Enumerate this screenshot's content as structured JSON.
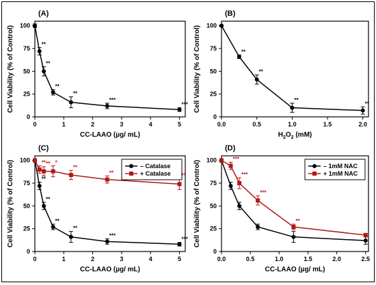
{
  "chart_data": [
    {
      "type": "line",
      "panel": "(A)",
      "title": "",
      "xlabel": "CC-LAAO (µg/ mL)",
      "ylabel": "Cell Viability (% of Control)",
      "xlim": [
        0,
        5.2
      ],
      "ylim": [
        0,
        105
      ],
      "xticks": [
        0,
        1,
        2,
        3,
        4,
        5
      ],
      "yticks": [
        0,
        25,
        50,
        75,
        100
      ],
      "xticklabels": [
        "0",
        "1",
        "2",
        "3",
        "4",
        "5"
      ],
      "yticklabels": [
        "0",
        "25",
        "50",
        "75",
        "100"
      ],
      "grid": false,
      "legend": null,
      "series": [
        {
          "name": "",
          "color": "#000000",
          "marker": "circle",
          "x": [
            0,
            0.16,
            0.31,
            0.63,
            1.25,
            2.5,
            5.0
          ],
          "y": [
            100,
            72,
            50,
            27,
            16,
            12,
            8
          ],
          "err": [
            2,
            4,
            5,
            3,
            6,
            3,
            2
          ],
          "sig": [
            "",
            "**",
            "**",
            "**",
            "**",
            "***",
            "***"
          ]
        }
      ]
    },
    {
      "type": "line",
      "panel": "(B)",
      "title": "",
      "xlabel": "H2O2 (mM)",
      "xlabel_main": "H",
      "xlabel_sub": "2",
      "xlabel_mid": "O",
      "xlabel_sub2": "2",
      "xlabel_tail": " (mM)",
      "ylabel": "Cell Viability (% of Control)",
      "xlim": [
        0,
        2.08
      ],
      "ylim": [
        0,
        105
      ],
      "xticks": [
        0,
        0.5,
        1.0,
        1.5,
        2.0
      ],
      "yticks": [
        0,
        25,
        50,
        75,
        100
      ],
      "xticklabels": [
        "0.0",
        "0.5",
        "1.0",
        "1.5",
        "2.0"
      ],
      "yticklabels": [
        "0",
        "25",
        "50",
        "75",
        "100"
      ],
      "grid": false,
      "legend": null,
      "series": [
        {
          "name": "",
          "color": "#000000",
          "marker": "circle",
          "x": [
            0,
            0.25,
            0.5,
            1.0,
            2.0
          ],
          "y": [
            100,
            66,
            41,
            10,
            7
          ],
          "err": [
            1,
            2,
            5,
            5,
            4
          ],
          "sig": [
            "",
            "**",
            "**",
            "**",
            "**"
          ]
        }
      ]
    },
    {
      "type": "line",
      "panel": "(C)",
      "title": "",
      "xlabel": "CC-LAAO (µg/ mL)",
      "ylabel": "Cell Viability (% of Control)",
      "xlim": [
        0,
        5.2
      ],
      "ylim": [
        0,
        105
      ],
      "xticks": [
        0,
        1,
        2,
        3,
        4,
        5
      ],
      "yticks": [
        0,
        25,
        50,
        75,
        100
      ],
      "xticklabels": [
        "0",
        "1",
        "2",
        "3",
        "4",
        "5"
      ],
      "yticklabels": [
        "0",
        "25",
        "50",
        "75",
        "100"
      ],
      "grid": false,
      "legend": "top-right",
      "series": [
        {
          "name": "– Catalase",
          "color": "#000000",
          "marker": "circle",
          "x": [
            0,
            0.16,
            0.31,
            0.63,
            1.25,
            2.5,
            5.0
          ],
          "y": [
            100,
            72,
            50,
            27,
            16,
            11,
            8
          ],
          "err": [
            2,
            4,
            4,
            3,
            6,
            3,
            2
          ],
          "sig": [
            "",
            "**",
            "**",
            "**",
            "**",
            "***",
            "***"
          ]
        },
        {
          "name": "+ Catalase",
          "color": "#b01818",
          "marker": "square",
          "x": [
            0,
            0.16,
            0.31,
            0.63,
            1.25,
            2.5,
            5.0
          ],
          "y": [
            100,
            90,
            88,
            88,
            84,
            79,
            74
          ],
          "err": [
            2,
            4,
            5,
            6,
            5,
            4,
            6
          ],
          "sig": [
            "",
            "**",
            "**",
            "*",
            "**",
            "**",
            "**"
          ]
        }
      ]
    },
    {
      "type": "line",
      "panel": "(D)",
      "title": "",
      "xlabel": "CC-LAAO (µg/ mL)",
      "ylabel": "Cell Viability (% of Control)",
      "xlim": [
        0,
        2.55
      ],
      "ylim": [
        0,
        105
      ],
      "xticks": [
        0,
        0.5,
        1.0,
        1.5,
        2.0,
        2.5
      ],
      "yticks": [
        0,
        25,
        50,
        75,
        100
      ],
      "xticklabels": [
        "0.0",
        "0.5",
        "1.0",
        "1.5",
        "2.0",
        "2.5"
      ],
      "yticklabels": [
        "0",
        "25",
        "50",
        "75",
        "100"
      ],
      "grid": false,
      "legend": "top-right",
      "series": [
        {
          "name": "– 1mM NAC",
          "color": "#000000",
          "marker": "circle",
          "x": [
            0,
            0.16,
            0.31,
            0.63,
            1.25,
            2.5
          ],
          "y": [
            100,
            72,
            50,
            27,
            16,
            12
          ],
          "err": [
            2,
            4,
            4,
            3,
            6,
            4
          ],
          "sig": [
            "",
            "",
            "",
            "",
            "",
            ""
          ]
        },
        {
          "name": "+ 1mM NAC",
          "color": "#b01818",
          "marker": "square",
          "x": [
            0,
            0.16,
            0.31,
            0.63,
            1.25,
            2.5
          ],
          "y": [
            100,
            94,
            75,
            56,
            27,
            18
          ],
          "err": [
            2,
            4,
            6,
            5,
            3,
            2
          ],
          "sig": [
            "",
            "***",
            "***",
            "***",
            "**",
            ""
          ]
        }
      ]
    }
  ]
}
